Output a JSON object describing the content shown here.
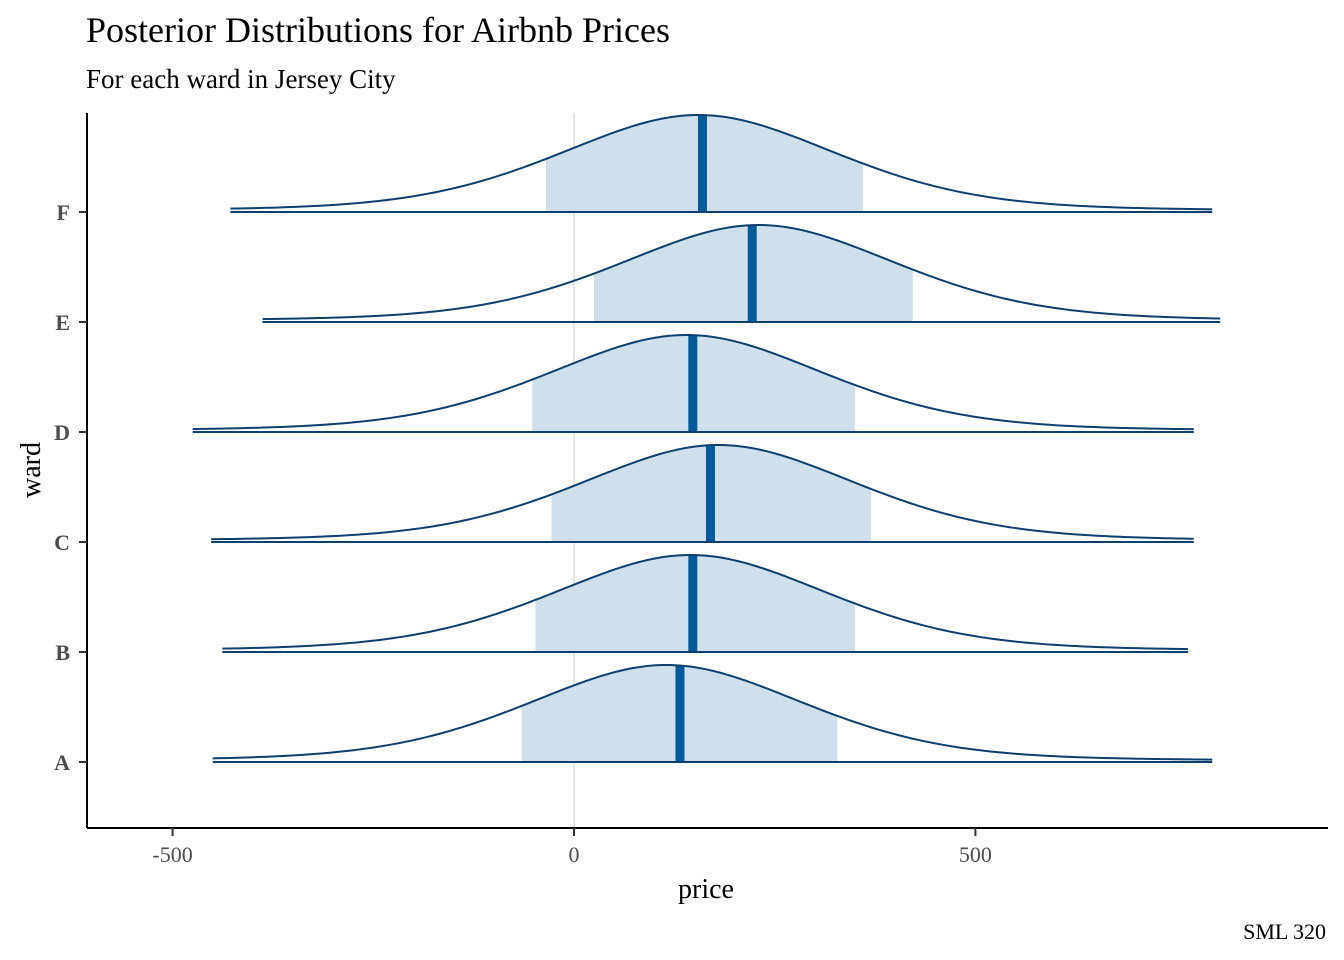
{
  "chart_data": {
    "type": "ridgeline-density",
    "title": "Posterior Distributions for Airbnb Prices",
    "subtitle": "For each ward in Jersey City",
    "caption": "SML 320",
    "xlabel": "price",
    "ylabel": "ward",
    "xlim": [
      -500,
      900
    ],
    "x_ticks": [
      -500,
      0,
      500
    ],
    "x_tick_labels": [
      "-500",
      "0",
      "500"
    ],
    "vline_at": 0,
    "colors": {
      "line": "#0e3f6e",
      "fill": "#cfe0ec",
      "median": "#045a9b",
      "vline": "#dddddd"
    },
    "series": [
      {
        "name": "A",
        "min": -450,
        "max": 795,
        "median": 132,
        "interval": [
          -65,
          328
        ],
        "peak_x": 115
      },
      {
        "name": "B",
        "min": -438,
        "max": 765,
        "median": 148,
        "interval": [
          -48,
          350
        ],
        "peak_x": 145
      },
      {
        "name": "C",
        "min": -452,
        "max": 772,
        "median": 170,
        "interval": [
          -28,
          370
        ],
        "peak_x": 180
      },
      {
        "name": "D",
        "min": -475,
        "max": 772,
        "median": 148,
        "interval": [
          -52,
          350
        ],
        "peak_x": 140
      },
      {
        "name": "E",
        "min": -388,
        "max": 805,
        "median": 222,
        "interval": [
          25,
          422
        ],
        "peak_x": 230
      },
      {
        "name": "F",
        "min": -428,
        "max": 795,
        "median": 160,
        "interval": [
          -35,
          360
        ],
        "peak_x": 155
      }
    ]
  }
}
